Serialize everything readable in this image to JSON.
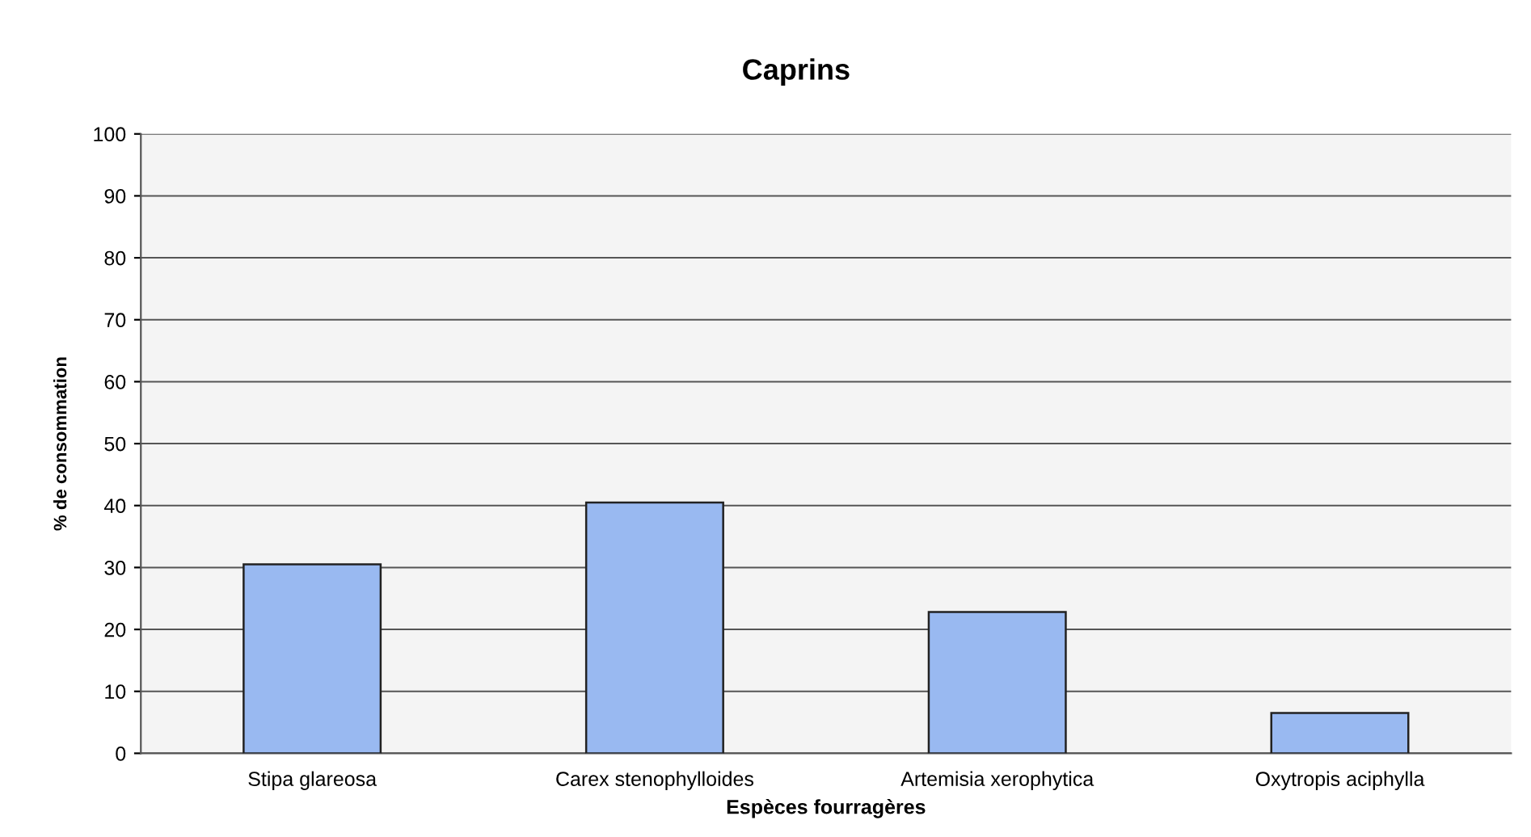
{
  "chart_data": {
    "type": "bar",
    "title": "Caprins",
    "xlabel": "Espèces fourragères",
    "ylabel": "% de consommation",
    "categories": [
      "Stipa glareosa",
      "Carex stenophylloides",
      "Artemisia xerophytica",
      "Oxytropis aciphylla"
    ],
    "values": [
      30.5,
      40.5,
      22.8,
      6.5
    ],
    "color": "#99b9f1",
    "ylim": [
      0,
      100
    ],
    "yticks": [
      0,
      10,
      20,
      30,
      40,
      50,
      60,
      70,
      80,
      90,
      100
    ],
    "grid": "y",
    "legend": false
  }
}
